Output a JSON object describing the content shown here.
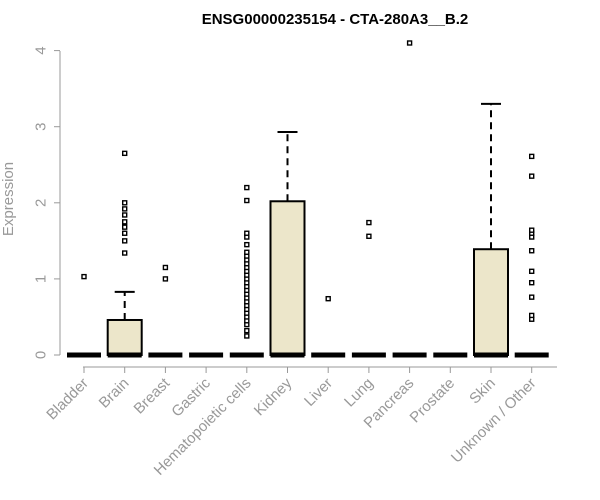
{
  "chart_data": {
    "type": "box",
    "title": "ENSG00000235154 - CTA-280A3__B.2",
    "xlabel": "",
    "ylabel": "Expression",
    "ylim": [
      0,
      4.2
    ],
    "yticks": [
      0,
      1,
      2,
      3,
      4
    ],
    "grid": false,
    "legend": "none",
    "box_fill": "#ece6ca",
    "categories": [
      "Bladder",
      "Brain",
      "Breast",
      "Gastric",
      "Hematopoietic cells",
      "Kidney",
      "Liver",
      "Lung",
      "Pancreas",
      "Prostate",
      "Skin",
      "Unknown / Other"
    ],
    "boxes": [
      {
        "q1": 0,
        "median": 0,
        "q3": 0,
        "whisker_low": 0,
        "whisker_high": 0,
        "outliers": [
          1.03
        ]
      },
      {
        "q1": 0,
        "median": 0,
        "q3": 0.46,
        "whisker_low": 0,
        "whisker_high": 0.83,
        "outliers": [
          1.34,
          1.5,
          1.6,
          1.68,
          1.75,
          1.84,
          1.92,
          2.0,
          2.65
        ]
      },
      {
        "q1": 0,
        "median": 0,
        "q3": 0,
        "whisker_low": 0,
        "whisker_high": 0,
        "outliers": [
          1.0,
          1.15
        ]
      },
      {
        "q1": 0,
        "median": 0,
        "q3": 0,
        "whisker_low": 0,
        "whisker_high": 0,
        "outliers": []
      },
      {
        "q1": 0,
        "median": 0,
        "q3": 0,
        "whisker_low": 0,
        "whisker_high": 0,
        "outliers": [
          0.25,
          0.32,
          0.4,
          0.45,
          0.5,
          0.55,
          0.6,
          0.65,
          0.7,
          0.75,
          0.8,
          0.85,
          0.9,
          0.95,
          1.0,
          1.05,
          1.1,
          1.15,
          1.2,
          1.25,
          1.3,
          1.35,
          1.45,
          1.55,
          1.6,
          2.03,
          2.2
        ]
      },
      {
        "q1": 0,
        "median": 0,
        "q3": 2.02,
        "whisker_low": 0,
        "whisker_high": 2.93,
        "outliers": []
      },
      {
        "q1": 0,
        "median": 0,
        "q3": 0,
        "whisker_low": 0,
        "whisker_high": 0,
        "outliers": [
          0.74
        ]
      },
      {
        "q1": 0,
        "median": 0,
        "q3": 0,
        "whisker_low": 0,
        "whisker_high": 0,
        "outliers": [
          1.56,
          1.74
        ]
      },
      {
        "q1": 0,
        "median": 0,
        "q3": 0,
        "whisker_low": 0,
        "whisker_high": 0,
        "outliers": [
          4.1
        ]
      },
      {
        "q1": 0,
        "median": 0,
        "q3": 0,
        "whisker_low": 0,
        "whisker_high": 0,
        "outliers": []
      },
      {
        "q1": 0,
        "median": 0,
        "q3": 1.39,
        "whisker_low": 0,
        "whisker_high": 3.3,
        "outliers": []
      },
      {
        "q1": 0,
        "median": 0,
        "q3": 0,
        "whisker_low": 0,
        "whisker_high": 0,
        "outliers": [
          0.47,
          0.52,
          0.76,
          0.95,
          1.1,
          1.37,
          1.55,
          1.6,
          1.64,
          2.35,
          2.61
        ]
      }
    ]
  }
}
